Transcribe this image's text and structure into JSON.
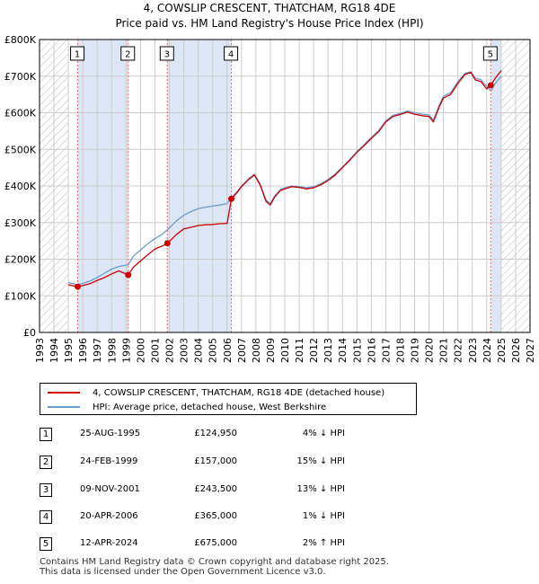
{
  "chart_data": {
    "type": "line",
    "title": "4, COWSLIP CRESCENT, THATCHAM, RG18 4DE",
    "subtitle": "Price paid vs. HM Land Registry's House Price Index (HPI)",
    "xlabel": "",
    "ylabel": "",
    "xlim": [
      1993,
      2027
    ],
    "ylim": [
      0,
      800000
    ],
    "x_ticks": [
      1993,
      1994,
      1995,
      1996,
      1997,
      1998,
      1999,
      2000,
      2001,
      2002,
      2003,
      2004,
      2005,
      2006,
      2007,
      2008,
      2009,
      2010,
      2011,
      2012,
      2013,
      2014,
      2015,
      2016,
      2017,
      2018,
      2019,
      2020,
      2021,
      2022,
      2023,
      2024,
      2025,
      2026,
      2027
    ],
    "y_ticks": [
      {
        "value": 0,
        "label": "£0"
      },
      {
        "value": 100000,
        "label": "£100K"
      },
      {
        "value": 200000,
        "label": "£200K"
      },
      {
        "value": 300000,
        "label": "£300K"
      },
      {
        "value": 400000,
        "label": "£400K"
      },
      {
        "value": 500000,
        "label": "£500K"
      },
      {
        "value": 600000,
        "label": "£600K"
      },
      {
        "value": 700000,
        "label": "£700K"
      },
      {
        "value": 800000,
        "label": "£800K"
      }
    ],
    "grid": true,
    "hatched_ranges": [
      [
        1993,
        1995.0
      ],
      [
        2025.0,
        2027
      ]
    ],
    "shaded_ranges": [
      [
        1995.65,
        1999.15
      ],
      [
        2001.86,
        2006.3
      ],
      [
        2024.28,
        2025.0
      ]
    ],
    "series": [
      {
        "name": "4, COWSLIP CRESCENT, THATCHAM, RG18 4DE (detached house)",
        "color": "#cc0000",
        "x": [
          1995.0,
          1995.65,
          1996,
          1996.5,
          1997,
          1997.5,
          1998,
          1998.5,
          1999.15,
          1999.5,
          2000,
          2000.5,
          2001,
          2001.5,
          2001.86,
          2002.5,
          2003,
          2003.5,
          2004,
          2004.5,
          2005,
          2005.5,
          2006.0,
          2006.3,
          2006.7,
          2007,
          2007.5,
          2007.9,
          2008.3,
          2008.7,
          2009.0,
          2009.3,
          2009.7,
          2010,
          2010.5,
          2011,
          2011.5,
          2012,
          2012.5,
          2013,
          2013.5,
          2014,
          2014.5,
          2015,
          2015.5,
          2016,
          2016.5,
          2017,
          2017.5,
          2018,
          2018.5,
          2019,
          2019.5,
          2020,
          2020.3,
          2020.7,
          2021,
          2021.5,
          2022,
          2022.5,
          2022.9,
          2023.2,
          2023.6,
          2024.0,
          2024.28,
          2024.6,
          2025.0
        ],
        "values": [
          130000,
          124950,
          128000,
          133000,
          142000,
          150000,
          160000,
          168000,
          157000,
          178000,
          195000,
          212000,
          228000,
          236000,
          243500,
          268000,
          283000,
          287000,
          292000,
          294000,
          295000,
          297000,
          298000,
          365000,
          382000,
          398000,
          418000,
          430000,
          402000,
          358000,
          348000,
          370000,
          388000,
          392000,
          398000,
          396000,
          392000,
          395000,
          403000,
          415000,
          430000,
          450000,
          470000,
          492000,
          510000,
          530000,
          548000,
          575000,
          590000,
          595000,
          602000,
          596000,
          592000,
          590000,
          575000,
          615000,
          640000,
          650000,
          680000,
          705000,
          710000,
          690000,
          685000,
          665000,
          675000,
          695000,
          715000
        ]
      },
      {
        "name": "HPI: Average price, detached house, West Berkshire",
        "color": "#6a9bd1",
        "x": [
          1995.0,
          1995.65,
          1996,
          1996.5,
          1997,
          1997.5,
          1998,
          1998.5,
          1999.15,
          1999.5,
          2000,
          2000.5,
          2001,
          2001.5,
          2001.86,
          2002.5,
          2003,
          2003.5,
          2004,
          2004.5,
          2005,
          2005.5,
          2006.0,
          2006.3,
          2006.7,
          2007,
          2007.5,
          2007.9,
          2008.3,
          2008.7,
          2009.0,
          2009.3,
          2009.7,
          2010,
          2010.5,
          2011,
          2011.5,
          2012,
          2012.5,
          2013,
          2013.5,
          2014,
          2014.5,
          2015,
          2015.5,
          2016,
          2016.5,
          2017,
          2017.5,
          2018,
          2018.5,
          2019,
          2019.5,
          2020,
          2020.3,
          2020.7,
          2021,
          2021.5,
          2022,
          2022.5,
          2022.9,
          2023.2,
          2023.6,
          2024.0,
          2024.28,
          2024.6,
          2025.0
        ],
        "values": [
          136000,
          130000,
          134000,
          140000,
          150000,
          162000,
          173000,
          180000,
          185000,
          208000,
          225000,
          242000,
          256000,
          268000,
          280000,
          305000,
          320000,
          330000,
          338000,
          342000,
          345000,
          348000,
          352000,
          368000,
          385000,
          400000,
          420000,
          432000,
          405000,
          362000,
          352000,
          373000,
          390000,
          395000,
          400000,
          398000,
          395000,
          398000,
          406000,
          418000,
          433000,
          452000,
          472000,
          494000,
          513000,
          533000,
          551000,
          578000,
          593000,
          598000,
          605000,
          600000,
          596000,
          594000,
          580000,
          620000,
          645000,
          655000,
          685000,
          708000,
          712000,
          695000,
          690000,
          672000,
          660000,
          680000,
          700000
        ]
      }
    ],
    "sales": [
      {
        "id": "1",
        "x": 1995.65,
        "value": 124950,
        "date": "25-AUG-1995",
        "price": "£124,950",
        "hpi": "4% ↓ HPI"
      },
      {
        "id": "2",
        "x": 1999.15,
        "value": 157000,
        "date": "24-FEB-1999",
        "price": "£157,000",
        "hpi": "15% ↓ HPI"
      },
      {
        "id": "3",
        "x": 2001.86,
        "value": 243500,
        "date": "09-NOV-2001",
        "price": "£243,500",
        "hpi": "13% ↓ HPI"
      },
      {
        "id": "4",
        "x": 2006.3,
        "value": 365000,
        "date": "20-APR-2006",
        "price": "£365,000",
        "hpi": "1% ↓ HPI"
      },
      {
        "id": "5",
        "x": 2024.28,
        "value": 675000,
        "date": "12-APR-2024",
        "price": "£675,000",
        "hpi": "2% ↑ HPI"
      }
    ]
  },
  "legend": {
    "property_label": "4, COWSLIP CRESCENT, THATCHAM, RG18 4DE (detached house)",
    "hpi_label": "HPI: Average price, detached house, West Berkshire",
    "property_color": "#cc0000",
    "hpi_color": "#6a9bd1"
  },
  "footer": {
    "line1": "Contains HM Land Registry data © Crown copyright and database right 2025.",
    "line2": "This data is licensed under the Open Government Licence v3.0."
  },
  "colors": {
    "grid": "#cccccc",
    "shade": "#dde6f4",
    "marker_line": "#e07070",
    "sale_dot": "#cc0000"
  }
}
